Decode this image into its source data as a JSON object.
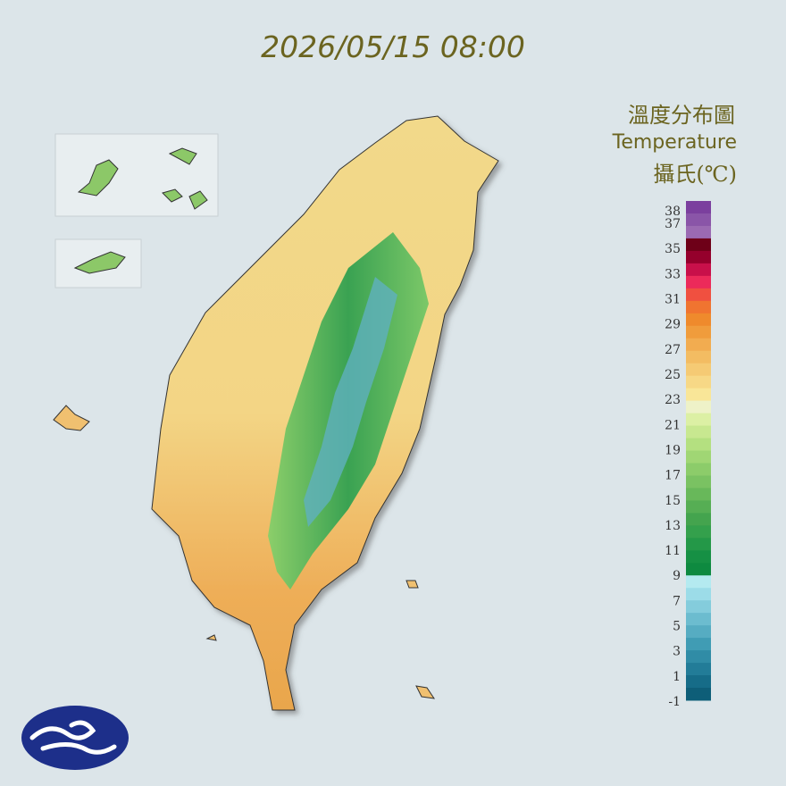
{
  "header": {
    "timestamp": "2026/05/15 08:00"
  },
  "legend": {
    "title": "溫度分布圖",
    "subtitle": "Temperature",
    "unit": "攝氏(℃)",
    "labels": [
      38,
      37,
      35,
      33,
      31,
      29,
      27,
      25,
      23,
      21,
      19,
      17,
      15,
      13,
      11,
      9,
      7,
      5,
      3,
      1,
      -1
    ],
    "colors": [
      "#7b3f9e",
      "#8a55a8",
      "#9b6ab2",
      "#6e0018",
      "#95002c",
      "#c8104a",
      "#ec2a5a",
      "#f05040",
      "#f07430",
      "#ef8a2c",
      "#f09c3c",
      "#f2ac50",
      "#f3bc62",
      "#f5ca74",
      "#f7d886",
      "#f9e698",
      "#eef2c8",
      "#dcf0a4",
      "#c8e890",
      "#b4e080",
      "#a0d674",
      "#8ccc6a",
      "#7ac262",
      "#68b85a",
      "#56ae54",
      "#44a44e",
      "#34a04c",
      "#249848",
      "#169044",
      "#0e8a40",
      "#b4eaf0",
      "#9cdce8",
      "#84ccdc",
      "#6cbccf",
      "#56acc2",
      "#409cb4",
      "#308ca6",
      "#227c98",
      "#166c88",
      "#0e5e78"
    ]
  }
}
